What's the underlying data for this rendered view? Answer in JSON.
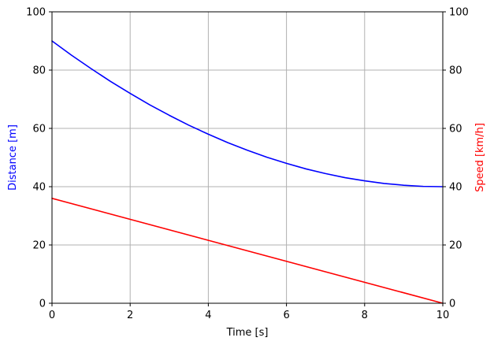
{
  "chart_data": {
    "type": "line",
    "xlabel": "Time [s]",
    "ylabel_left": "Distance [m]",
    "ylabel_right": "Speed [km/h]",
    "xlim": [
      0,
      10
    ],
    "ylim_left": [
      0,
      100
    ],
    "ylim_right": [
      0,
      100
    ],
    "xticks": [
      "0",
      "2",
      "4",
      "6",
      "8",
      "10"
    ],
    "yticks_left": [
      "0",
      "20",
      "40",
      "60",
      "80",
      "100"
    ],
    "yticks_right": [
      "0",
      "20",
      "40",
      "60",
      "80",
      "100"
    ],
    "grid": true,
    "colors": {
      "distance": "#0000ff",
      "speed": "#ff0000",
      "grid": "#b0b0b0"
    },
    "series": [
      {
        "axis": "left",
        "color": "#0000ff",
        "x": [
          0,
          0.5,
          1,
          1.5,
          2,
          2.5,
          3,
          3.5,
          4,
          4.5,
          5,
          5.5,
          6,
          6.5,
          7,
          7.5,
          8,
          8.5,
          9,
          9.5,
          10
        ],
        "y": [
          90,
          85.1,
          80.5,
          76.1,
          72,
          68.1,
          64.5,
          61.1,
          58,
          55.1,
          52.5,
          50.1,
          48,
          46.1,
          44.5,
          43.1,
          42,
          41.1,
          40.5,
          40.1,
          40
        ]
      },
      {
        "axis": "right",
        "color": "#ff0000",
        "x": [
          0,
          10
        ],
        "y": [
          36,
          0
        ]
      }
    ]
  }
}
